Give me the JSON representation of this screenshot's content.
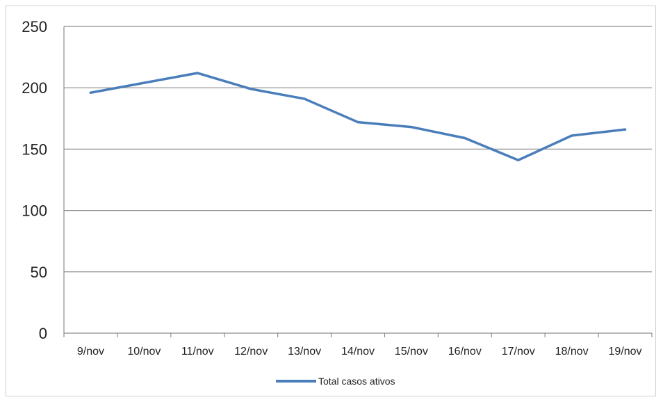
{
  "chart_data": {
    "type": "line",
    "title": "",
    "xlabel": "",
    "ylabel": "",
    "categories": [
      "9/nov",
      "10/nov",
      "11/nov",
      "12/nov",
      "13/nov",
      "14/nov",
      "15/nov",
      "16/nov",
      "17/nov",
      "18/nov",
      "19/nov"
    ],
    "series": [
      {
        "name": "Total casos ativos",
        "color": "#4a7ebb",
        "values": [
          196,
          204,
          212,
          199,
          191,
          172,
          168,
          159,
          141,
          161,
          166
        ]
      }
    ],
    "ylim": [
      0,
      250
    ],
    "yticks": [
      "0",
      "50",
      "100",
      "150",
      "200",
      "250"
    ],
    "grid": true,
    "legend": "bottom"
  }
}
